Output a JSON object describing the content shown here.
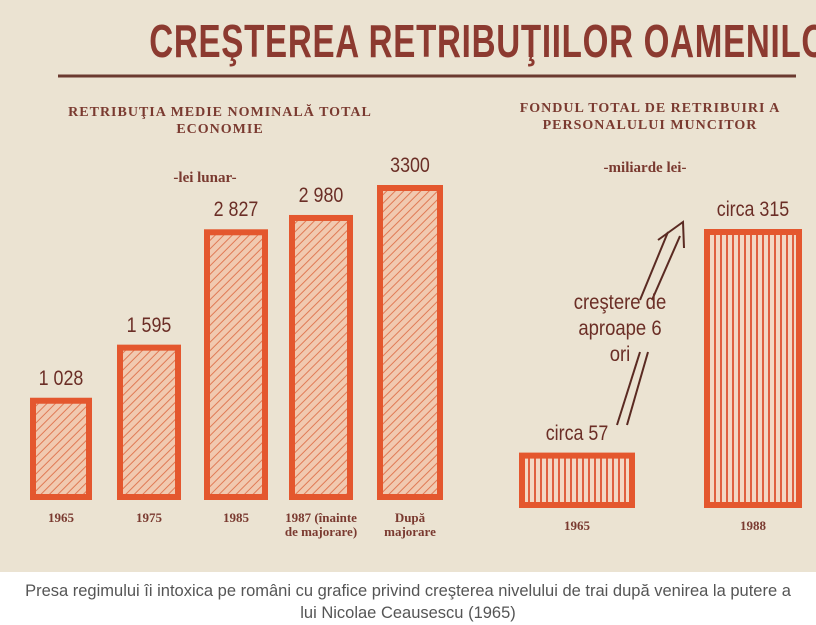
{
  "title": "CREŞTEREA RETRIBUŢIILOR OAMENILOR MUNCII",
  "chart_data": [
    {
      "type": "bar",
      "title": "RETRIBUŢIA MEDIE NOMINALĂ TOTAL ECONOMIE",
      "subtitle": "-lei lunar-",
      "categories": [
        "1965",
        "1975",
        "1985",
        "1987 (înainte de majorare)",
        "După majorare"
      ],
      "values": [
        1028,
        1595,
        2827,
        2980,
        3300
      ],
      "value_labels": [
        "1 028",
        "1 595",
        "2 827",
        "2 980",
        "3300"
      ],
      "color": "#e4572e",
      "pattern": "diagonal"
    },
    {
      "type": "bar",
      "title": "FONDUL TOTAL DE RETRIBUIRI A PERSONALULUI MUNCITOR",
      "subtitle": "-miliarde lei-",
      "categories": [
        "1965",
        "1988"
      ],
      "values": [
        57,
        315
      ],
      "value_labels": [
        "circa 57",
        "circa 315"
      ],
      "annotation": "creştere de aproape 6 ori",
      "color": "#e4572e",
      "pattern": "vertical"
    }
  ],
  "caption": "Presa regimului îi intoxica pe români cu grafice privind creşterea nivelului de trai după venirea la putere a lui Nicolae Ceausescu (1965)"
}
